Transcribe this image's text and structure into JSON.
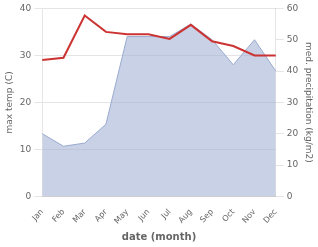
{
  "chart_data": {
    "type": "line",
    "xlabel": "date (month)",
    "ylabel": "max temp (C)",
    "y2label": "med. precipitation (kg/m2)",
    "categories": [
      "Jan",
      "Feb",
      "Mar",
      "Apr",
      "May",
      "Jun",
      "Jul",
      "Aug",
      "Sep",
      "Oct",
      "Nov",
      "Dec"
    ],
    "series": [
      {
        "type": "area",
        "axis": "y2",
        "color": "#9aabcf",
        "values": [
          20,
          16,
          17,
          23,
          51,
          51,
          51,
          55,
          50,
          42,
          50,
          40
        ]
      },
      {
        "type": "line",
        "color": "#cc3333",
        "values": [
          29,
          29.5,
          38.5,
          35,
          34.5,
          34.5,
          33.5,
          36.5,
          33,
          32,
          30,
          30
        ]
      }
    ],
    "ylim": [
      0,
      40
    ],
    "yticks": [
      0,
      10,
      20,
      30,
      40
    ],
    "y2lim": [
      0,
      60
    ],
    "y2ticks": [
      0,
      10,
      20,
      30,
      40,
      50,
      60
    ],
    "grid": true
  }
}
